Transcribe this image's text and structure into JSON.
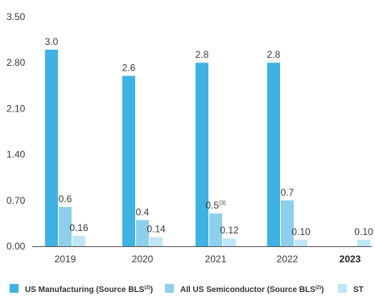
{
  "colors": {
    "us_manufacturing": "#3db3e3",
    "all_us_semiconductor": "#8dd0ee",
    "st": "#bfe6f6",
    "axis": "#555555",
    "text": "#3a3a3a"
  },
  "chart_data": {
    "type": "bar",
    "title": "",
    "xlabel": "",
    "ylabel": "",
    "ylim": [
      0,
      3.5
    ],
    "yticks": [
      "0.00",
      "0.70",
      "1.40",
      "2.10",
      "2.80",
      "3.50"
    ],
    "categories": [
      "2019",
      "2020",
      "2021",
      "2022",
      "2023"
    ],
    "bold_categories": [
      "2023"
    ],
    "grid": false,
    "legend_position": "bottom",
    "series": [
      {
        "name": "US Manufacturing (Source BLS",
        "name_superscript": "(2)",
        "name_suffix": ")",
        "color_key": "us_manufacturing",
        "values": [
          3.0,
          2.6,
          2.8,
          2.8,
          null
        ],
        "labels": [
          "3.0",
          "2.6",
          "2.8",
          "2.8",
          ""
        ],
        "label_superscripts": [
          "",
          "",
          "",
          "",
          ""
        ]
      },
      {
        "name": "All US Semiconductor (Source BLS",
        "name_superscript": "(2)",
        "name_suffix": ")",
        "color_key": "all_us_semiconductor",
        "values": [
          0.6,
          0.4,
          0.5,
          0.7,
          null
        ],
        "labels": [
          "0.6",
          "0.4",
          "0.5",
          "0.7",
          ""
        ],
        "label_superscripts": [
          "",
          "",
          "(3)",
          "",
          ""
        ]
      },
      {
        "name": "ST",
        "name_superscript": "",
        "name_suffix": "",
        "color_key": "st",
        "values": [
          0.16,
          0.14,
          0.12,
          0.1,
          0.1
        ],
        "labels": [
          "0.16",
          "0.14",
          "0.12",
          "0.10",
          "0.10"
        ],
        "label_superscripts": [
          "",
          "",
          "",
          "",
          ""
        ]
      }
    ]
  }
}
